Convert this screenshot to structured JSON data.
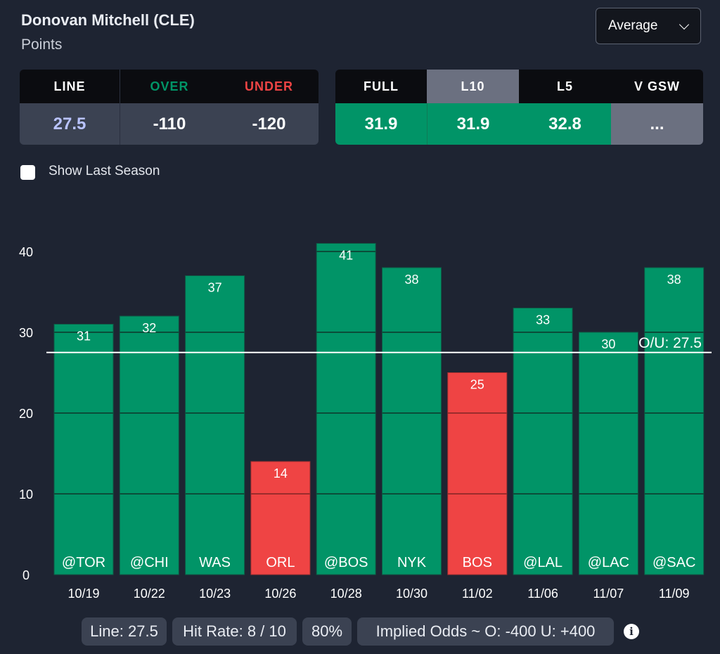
{
  "header": {
    "player": "Donovan Mitchell (CLE)",
    "stat": "Points",
    "dropdown_value": "Average"
  },
  "odds": {
    "headers": [
      "LINE",
      "OVER",
      "UNDER"
    ],
    "values": [
      "27.5",
      "-110",
      "-120"
    ]
  },
  "averages": {
    "headers": [
      "FULL",
      "L10",
      "L5",
      "V GSW"
    ],
    "values": [
      "31.9",
      "31.9",
      "32.8",
      "..."
    ],
    "selected_tab": "L10"
  },
  "toggle": {
    "label": "Show Last Season",
    "checked": false
  },
  "colors": {
    "over": "#019467",
    "under": "#ef4444",
    "line_value": "#b9c3ff",
    "background": "#1e2432"
  },
  "chart_data": {
    "type": "bar",
    "categories": [
      "10/19",
      "10/22",
      "10/23",
      "10/26",
      "10/28",
      "10/30",
      "11/02",
      "11/06",
      "11/07",
      "11/09"
    ],
    "opponents": [
      "@TOR",
      "@CHI",
      "WAS",
      "ORL",
      "@BOS",
      "NYK",
      "BOS",
      "@LAL",
      "@LAC",
      "@SAC"
    ],
    "values": [
      31,
      32,
      37,
      14,
      41,
      38,
      25,
      33,
      30,
      38
    ],
    "ylim": [
      0,
      40
    ],
    "yticks": [
      0,
      10,
      20,
      30,
      40
    ],
    "line": 27.5,
    "line_label": "O/U: 27.5",
    "grid": true
  },
  "footer": {
    "line": "Line: 27.5",
    "hit_rate": "Hit Rate: 8 / 10",
    "pct": "80%",
    "implied_odds": "Implied Odds ~ O: -400 U: +400",
    "info_icon": "info-icon"
  }
}
